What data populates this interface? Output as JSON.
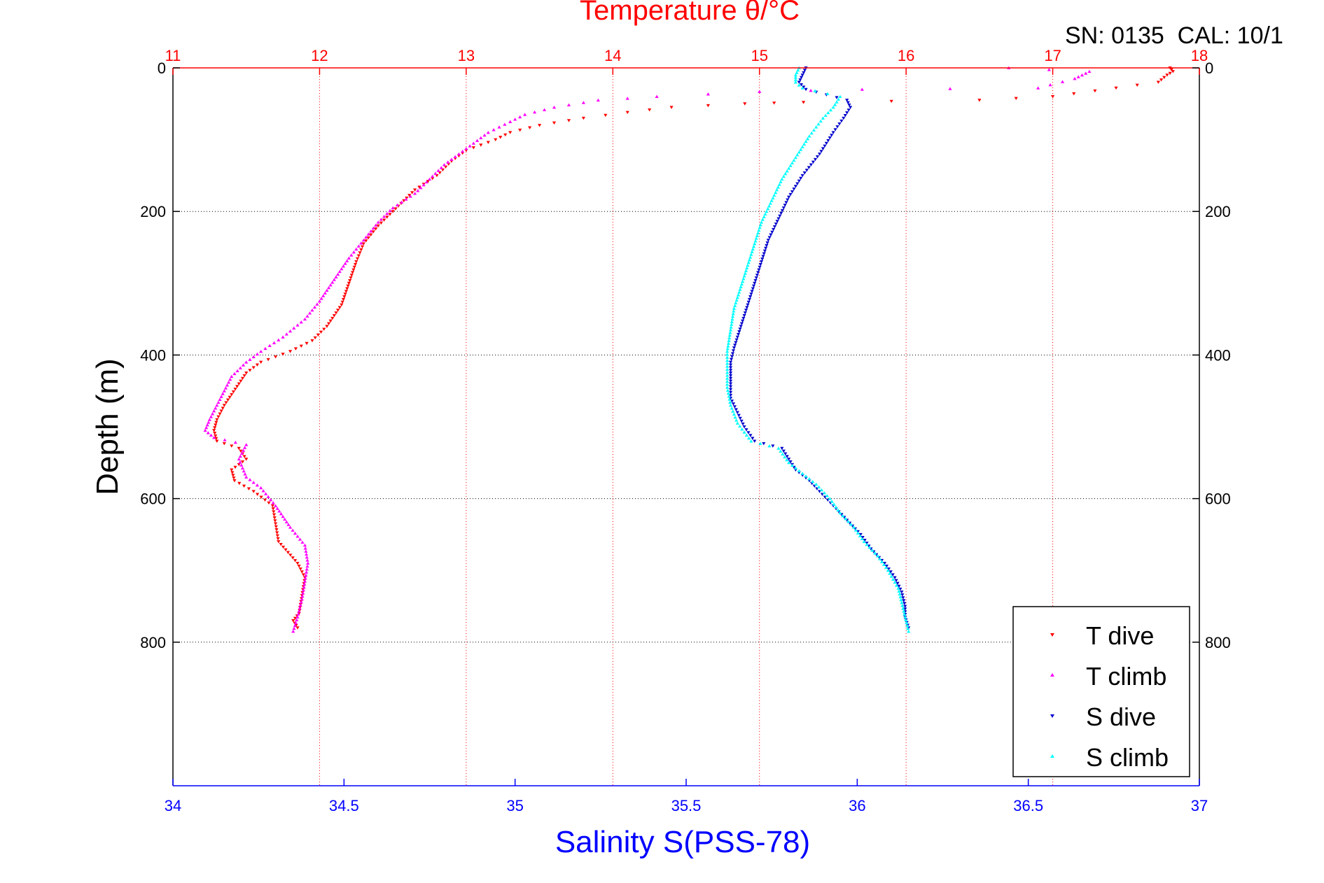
{
  "header": {
    "title": "Temperature θ/°C",
    "serial_info": "SN: 0135  CAL: 10/1"
  },
  "colors": {
    "temperature_axis": "#ff0000",
    "salinity_axis": "#0000ff",
    "grid": "#000000",
    "t_dive": "#ff0000",
    "t_climb": "#ff00ff",
    "s_dive": "#0000cc",
    "s_climb": "#00ffff"
  },
  "chart_data": {
    "type": "scatter",
    "title": "Temperature θ/°C",
    "ylabel": "Depth (m)",
    "xlabel_bottom": "Salinity S(PSS-78)",
    "xlabel_top": "Temperature θ/°C",
    "ylim": [
      0,
      1000
    ],
    "y_reversed": true,
    "y_ticks": [
      "0",
      "200",
      "400",
      "600",
      "800"
    ],
    "y_tick_values": [
      0,
      200,
      400,
      600,
      800
    ],
    "temperature_axis": {
      "range": [
        11,
        18
      ],
      "ticks": [
        "11",
        "12",
        "13",
        "14",
        "15",
        "16",
        "17",
        "18"
      ],
      "tick_values": [
        11,
        12,
        13,
        14,
        15,
        16,
        17,
        18
      ]
    },
    "salinity_axis": {
      "range": [
        34,
        37
      ],
      "ticks": [
        "34",
        "34.5",
        "35",
        "35.5",
        "36",
        "36.5",
        "37"
      ],
      "tick_values": [
        34,
        34.5,
        35,
        35.5,
        36,
        36.5,
        37
      ]
    },
    "grid": "dotted",
    "legend_position": "bottom-right",
    "series": [
      {
        "name": "T dive",
        "axis": "temperature",
        "marker": "triangle-down",
        "points": [
          [
            17.8,
            0
          ],
          [
            17.82,
            5
          ],
          [
            17.78,
            10
          ],
          [
            17.72,
            20
          ],
          [
            17.0,
            40
          ],
          [
            16.5,
            45
          ],
          [
            15.3,
            48
          ],
          [
            14.9,
            50
          ],
          [
            14.4,
            55
          ],
          [
            14.1,
            62
          ],
          [
            13.8,
            70
          ],
          [
            13.5,
            80
          ],
          [
            13.3,
            90
          ],
          [
            13.2,
            100
          ],
          [
            13.0,
            115
          ],
          [
            12.9,
            130
          ],
          [
            12.8,
            150
          ],
          [
            12.65,
            170
          ],
          [
            12.5,
            200
          ],
          [
            12.4,
            220
          ],
          [
            12.3,
            245
          ],
          [
            12.25,
            270
          ],
          [
            12.2,
            300
          ],
          [
            12.15,
            330
          ],
          [
            12.05,
            360
          ],
          [
            11.95,
            380
          ],
          [
            11.8,
            395
          ],
          [
            11.6,
            410
          ],
          [
            11.5,
            425
          ],
          [
            11.45,
            440
          ],
          [
            11.4,
            455
          ],
          [
            11.35,
            470
          ],
          [
            11.3,
            490
          ],
          [
            11.28,
            505
          ],
          [
            11.3,
            520
          ],
          [
            11.45,
            530
          ],
          [
            11.5,
            545
          ],
          [
            11.4,
            560
          ],
          [
            11.42,
            575
          ],
          [
            11.55,
            590
          ],
          [
            11.68,
            610
          ],
          [
            11.7,
            635
          ],
          [
            11.72,
            660
          ],
          [
            11.85,
            690
          ],
          [
            11.9,
            710
          ],
          [
            11.88,
            735
          ],
          [
            11.86,
            760
          ],
          [
            11.82,
            770
          ],
          [
            11.85,
            780
          ]
        ]
      },
      {
        "name": "T climb",
        "axis": "temperature",
        "marker": "triangle-up",
        "points": [
          [
            16.7,
            0
          ],
          [
            17.25,
            5
          ],
          [
            17.2,
            10
          ],
          [
            17.15,
            15
          ],
          [
            16.9,
            28
          ],
          [
            15.7,
            30
          ],
          [
            15.0,
            33
          ],
          [
            14.3,
            40
          ],
          [
            13.9,
            45
          ],
          [
            13.6,
            55
          ],
          [
            13.4,
            65
          ],
          [
            13.3,
            75
          ],
          [
            13.15,
            90
          ],
          [
            13.05,
            105
          ],
          [
            12.95,
            120
          ],
          [
            12.85,
            135
          ],
          [
            12.75,
            155
          ],
          [
            12.65,
            175
          ],
          [
            12.5,
            195
          ],
          [
            12.4,
            215
          ],
          [
            12.3,
            240
          ],
          [
            12.2,
            265
          ],
          [
            12.1,
            295
          ],
          [
            12.0,
            325
          ],
          [
            11.9,
            350
          ],
          [
            11.75,
            375
          ],
          [
            11.6,
            395
          ],
          [
            11.5,
            410
          ],
          [
            11.4,
            430
          ],
          [
            11.35,
            450
          ],
          [
            11.3,
            470
          ],
          [
            11.25,
            490
          ],
          [
            11.22,
            505
          ],
          [
            11.28,
            515
          ],
          [
            11.5,
            525
          ],
          [
            11.45,
            545
          ],
          [
            11.5,
            570
          ],
          [
            11.6,
            585
          ],
          [
            11.7,
            610
          ],
          [
            11.8,
            640
          ],
          [
            11.9,
            665
          ],
          [
            11.92,
            690
          ],
          [
            11.9,
            715
          ],
          [
            11.88,
            740
          ],
          [
            11.85,
            765
          ],
          [
            11.82,
            785
          ]
        ]
      },
      {
        "name": "S dive",
        "axis": "salinity",
        "marker": "triangle-down",
        "points": [
          [
            35.85,
            0
          ],
          [
            35.84,
            10
          ],
          [
            35.83,
            20
          ],
          [
            35.85,
            30
          ],
          [
            35.97,
            45
          ],
          [
            35.98,
            55
          ],
          [
            35.96,
            70
          ],
          [
            35.93,
            90
          ],
          [
            35.89,
            120
          ],
          [
            35.84,
            150
          ],
          [
            35.8,
            180
          ],
          [
            35.77,
            210
          ],
          [
            35.74,
            240
          ],
          [
            35.72,
            270
          ],
          [
            35.7,
            300
          ],
          [
            35.68,
            330
          ],
          [
            35.66,
            360
          ],
          [
            35.64,
            390
          ],
          [
            35.63,
            410
          ],
          [
            35.63,
            440
          ],
          [
            35.63,
            460
          ],
          [
            35.65,
            480
          ],
          [
            35.67,
            500
          ],
          [
            35.7,
            520
          ],
          [
            35.78,
            530
          ],
          [
            35.8,
            545
          ],
          [
            35.82,
            560
          ],
          [
            35.86,
            575
          ],
          [
            35.89,
            590
          ],
          [
            35.93,
            610
          ],
          [
            35.97,
            630
          ],
          [
            36.01,
            650
          ],
          [
            36.04,
            670
          ],
          [
            36.08,
            690
          ],
          [
            36.11,
            710
          ],
          [
            36.13,
            730
          ],
          [
            36.14,
            750
          ],
          [
            36.14,
            765
          ],
          [
            36.15,
            780
          ]
        ]
      },
      {
        "name": "S climb",
        "axis": "salinity",
        "marker": "triangle-up",
        "points": [
          [
            35.83,
            0
          ],
          [
            35.82,
            10
          ],
          [
            35.82,
            20
          ],
          [
            35.84,
            28
          ],
          [
            35.95,
            40
          ],
          [
            35.93,
            55
          ],
          [
            35.9,
            70
          ],
          [
            35.86,
            95
          ],
          [
            35.82,
            125
          ],
          [
            35.78,
            155
          ],
          [
            35.75,
            185
          ],
          [
            35.72,
            215
          ],
          [
            35.7,
            245
          ],
          [
            35.68,
            275
          ],
          [
            35.66,
            305
          ],
          [
            35.64,
            335
          ],
          [
            35.63,
            365
          ],
          [
            35.62,
            395
          ],
          [
            35.62,
            420
          ],
          [
            35.62,
            445
          ],
          [
            35.63,
            470
          ],
          [
            35.65,
            495
          ],
          [
            35.69,
            520
          ],
          [
            35.77,
            530
          ],
          [
            35.8,
            550
          ],
          [
            35.84,
            565
          ],
          [
            35.88,
            580
          ],
          [
            35.92,
            600
          ],
          [
            35.95,
            620
          ],
          [
            35.99,
            640
          ],
          [
            36.02,
            660
          ],
          [
            36.06,
            680
          ],
          [
            36.09,
            700
          ],
          [
            36.12,
            725
          ],
          [
            36.13,
            745
          ],
          [
            36.14,
            765
          ],
          [
            36.15,
            785
          ]
        ]
      }
    ]
  }
}
